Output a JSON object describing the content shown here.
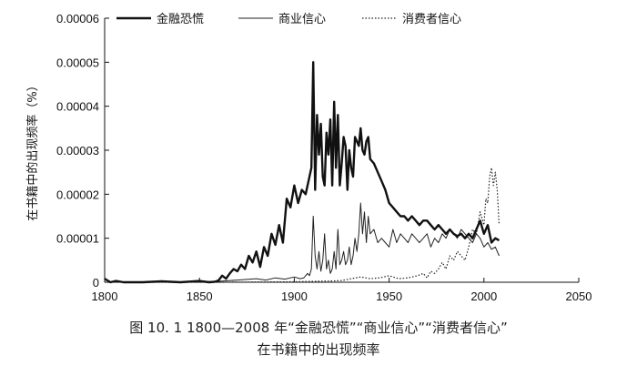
{
  "chart_data": {
    "type": "line",
    "xlim": [
      1800,
      2050
    ],
    "ylim": [
      0,
      6e-05
    ],
    "xticks": [
      "1800",
      "1850",
      "1900",
      "1950",
      "2000",
      "2050"
    ],
    "yticks": [
      "0",
      "0.00001",
      "0.00002",
      "0.00003",
      "0.00004",
      "0.00005",
      "0.00006"
    ],
    "ylabel": "在书籍中的出现频率（%）",
    "grid": false,
    "legend_position": "top",
    "series": [
      {
        "name": "金融恐慌",
        "style": "thick-solid",
        "color": "#111111",
        "x": [
          1800,
          1803,
          1806,
          1810,
          1820,
          1830,
          1840,
          1850,
          1855,
          1858,
          1860,
          1862,
          1864,
          1866,
          1868,
          1870,
          1872,
          1874,
          1876,
          1878,
          1880,
          1882,
          1884,
          1886,
          1888,
          1890,
          1892,
          1894,
          1896,
          1898,
          1900,
          1902,
          1904,
          1906,
          1908,
          1909,
          1910,
          1911,
          1912,
          1913,
          1914,
          1915,
          1916,
          1917,
          1918,
          1919,
          1920,
          1921,
          1922,
          1923,
          1924,
          1925,
          1926,
          1927,
          1928,
          1929,
          1930,
          1931,
          1932,
          1933,
          1934,
          1935,
          1936,
          1937,
          1938,
          1939,
          1940,
          1942,
          1944,
          1946,
          1948,
          1950,
          1952,
          1954,
          1956,
          1958,
          1960,
          1962,
          1964,
          1966,
          1968,
          1970,
          1972,
          1974,
          1976,
          1978,
          1980,
          1982,
          1984,
          1986,
          1988,
          1990,
          1992,
          1994,
          1996,
          1998,
          2000,
          2002,
          2004,
          2006,
          2008
        ],
        "y": [
          8e-07,
          0,
          3e-07,
          0,
          0,
          2e-07,
          0,
          3e-07,
          0,
          1e-07,
          4e-07,
          1.5e-06,
          8e-07,
          2e-06,
          3e-06,
          2.5e-06,
          4e-06,
          3e-06,
          6e-06,
          4.5e-06,
          7e-06,
          3.5e-06,
          8e-06,
          6e-06,
          1.1e-05,
          8.5e-06,
          1.3e-05,
          9e-06,
          1.9e-05,
          1.7e-05,
          2.2e-05,
          1.8e-05,
          2.1e-05,
          2e-05,
          2.4e-05,
          2.6e-05,
          5e-05,
          2.1e-05,
          3.8e-05,
          2.9e-05,
          3.6e-05,
          2.4e-05,
          2.2e-05,
          3.4e-05,
          2.9e-05,
          3.7e-05,
          2.2e-05,
          4.1e-05,
          2.6e-05,
          3.8e-05,
          2.2e-05,
          2.7e-05,
          3.3e-05,
          3.1e-05,
          2.1e-05,
          3e-05,
          2.6e-05,
          2.4e-05,
          3.3e-05,
          3.2e-05,
          3.1e-05,
          3.5e-05,
          3e-05,
          2.9e-05,
          3.2e-05,
          3.3e-05,
          2.8e-05,
          2.7e-05,
          2.5e-05,
          2.3e-05,
          2.1e-05,
          1.8e-05,
          1.7e-05,
          1.6e-05,
          1.5e-05,
          1.5e-05,
          1.4e-05,
          1.5e-05,
          1.4e-05,
          1.3e-05,
          1.4e-05,
          1.4e-05,
          1.3e-05,
          1.2e-05,
          1.3e-05,
          1.2e-05,
          1.1e-05,
          1.2e-05,
          1.1e-05,
          1.05e-05,
          1.1e-05,
          1e-05,
          1.1e-05,
          1e-05,
          1.2e-05,
          1.4e-05,
          1.1e-05,
          1.3e-05,
          9e-06,
          1e-05,
          9.5e-06
        ]
      },
      {
        "name": "商业信心",
        "style": "thin-solid",
        "color": "#222222",
        "x": [
          1800,
          1820,
          1840,
          1860,
          1870,
          1880,
          1885,
          1890,
          1895,
          1900,
          1903,
          1905,
          1907,
          1908,
          1909,
          1910,
          1911,
          1912,
          1913,
          1914,
          1915,
          1916,
          1917,
          1918,
          1919,
          1920,
          1921,
          1922,
          1923,
          1924,
          1925,
          1926,
          1927,
          1928,
          1929,
          1930,
          1931,
          1932,
          1933,
          1934,
          1935,
          1936,
          1937,
          1938,
          1939,
          1940,
          1942,
          1944,
          1946,
          1948,
          1950,
          1952,
          1954,
          1956,
          1958,
          1960,
          1962,
          1964,
          1966,
          1968,
          1970,
          1972,
          1974,
          1976,
          1978,
          1980,
          1982,
          1984,
          1986,
          1988,
          1990,
          1992,
          1994,
          1996,
          1998,
          2000,
          2002,
          2004,
          2006,
          2008
        ],
        "y": [
          0,
          0,
          0,
          2e-07,
          5e-07,
          8e-07,
          5e-07,
          1e-06,
          7e-07,
          1.2e-06,
          8e-07,
          1e-06,
          2e-06,
          1.5e-06,
          3e-06,
          1.5e-05,
          6e-06,
          3e-06,
          7e-06,
          2.5e-06,
          5e-06,
          1.1e-05,
          3e-06,
          5e-06,
          2e-06,
          3e-06,
          7e-06,
          3e-06,
          1.2e-05,
          4e-06,
          5e-06,
          7e-06,
          4e-06,
          5e-06,
          8e-06,
          4e-06,
          6e-06,
          1e-05,
          7e-06,
          1.1e-05,
          1.8e-05,
          1.1e-05,
          1.6e-05,
          9e-06,
          1.5e-05,
          1.1e-05,
          1.2e-05,
          9e-06,
          1e-05,
          9e-06,
          8e-06,
          1.2e-05,
          9e-06,
          1.1e-05,
          1e-05,
          9e-06,
          1.1e-05,
          1e-05,
          9e-06,
          1e-05,
          1.1e-05,
          8e-06,
          1e-05,
          9e-06,
          1.1e-05,
          1e-05,
          1.2e-05,
          1.1e-05,
          1e-05,
          1.2e-05,
          1.1e-05,
          1e-05,
          9e-06,
          1.1e-05,
          1e-05,
          8e-06,
          9e-06,
          7.5e-06,
          8e-06,
          6e-06
        ]
      },
      {
        "name": "消费者信心",
        "style": "dotted",
        "color": "#222222",
        "x": [
          1800,
          1860,
          1900,
          1910,
          1920,
          1925,
          1930,
          1935,
          1940,
          1945,
          1950,
          1955,
          1960,
          1965,
          1968,
          1970,
          1972,
          1974,
          1976,
          1978,
          1980,
          1982,
          1984,
          1986,
          1988,
          1990,
          1992,
          1994,
          1996,
          1998,
          2000,
          2001,
          2002,
          2003,
          2004,
          2005,
          2006,
          2007,
          2008
        ],
        "y": [
          0,
          0,
          1e-07,
          2e-07,
          3e-07,
          4e-07,
          8e-07,
          1.2e-06,
          8e-07,
          1e-06,
          1.5e-06,
          8e-07,
          1e-06,
          1.5e-06,
          2e-06,
          1e-06,
          2.5e-06,
          2e-06,
          3e-06,
          4.5e-06,
          3e-06,
          6e-06,
          5e-06,
          7e-06,
          6e-06,
          5e-06,
          8e-06,
          1.2e-05,
          1.1e-05,
          1.6e-05,
          1.3e-05,
          1.9e-05,
          1.8e-05,
          2.4e-05,
          2.6e-05,
          2.2e-05,
          2.5e-05,
          2.1e-05,
          1.3e-05
        ]
      }
    ]
  },
  "caption": {
    "line1": "图 10. 1   1800—2008 年“金融恐慌”“商业信心”“消费者信心”",
    "line2": "在书籍中的出现频率"
  }
}
